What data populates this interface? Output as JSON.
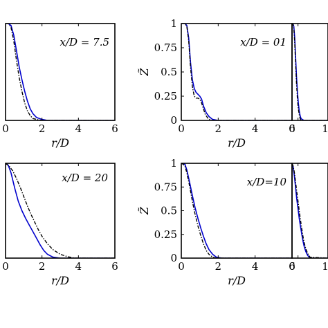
{
  "chart_data": [
    {
      "type": "line",
      "xlabel": "r/D",
      "ylabel": "",
      "annotation": "x/D = 7.5",
      "xticks": [
        "0",
        "2",
        "4",
        "6"
      ],
      "yticks": [],
      "xlim": [
        0,
        6
      ],
      "ylim": [
        0,
        1
      ],
      "grid": false,
      "series": [
        {
          "style": "solid",
          "color": "#0000cc",
          "x": [
            0,
            0.15,
            0.3,
            0.45,
            0.6,
            0.75,
            0.9,
            1.05,
            1.2,
            1.35,
            1.5,
            1.7,
            2.0,
            2.3,
            6
          ],
          "y": [
            1,
            1,
            0.98,
            0.88,
            0.72,
            0.55,
            0.42,
            0.3,
            0.2,
            0.12,
            0.07,
            0.03,
            0.01,
            0,
            0
          ]
        },
        {
          "style": "dashdot",
          "color": "#000000",
          "x": [
            0,
            0.15,
            0.3,
            0.45,
            0.6,
            0.75,
            0.9,
            1.05,
            1.2,
            1.35,
            1.5,
            1.7,
            2.0,
            6
          ],
          "y": [
            1,
            1,
            0.96,
            0.82,
            0.62,
            0.44,
            0.3,
            0.18,
            0.1,
            0.05,
            0.02,
            0.01,
            0,
            0
          ]
        }
      ]
    },
    {
      "type": "line",
      "xlabel": "r/D",
      "ylabel": "Z̃",
      "annotation": "x/D = 01",
      "xticks": [
        "0",
        "2",
        "4",
        "6"
      ],
      "yticks": [
        "0",
        "0.25",
        "0.5",
        "0.75",
        "1"
      ],
      "xlim": [
        0,
        6
      ],
      "ylim": [
        0,
        1
      ],
      "grid": false,
      "series": [
        {
          "style": "solid",
          "color": "#0000cc",
          "x": [
            0,
            0.1,
            0.2,
            0.3,
            0.4,
            0.5,
            0.6,
            0.7,
            0.8,
            0.9,
            1.0,
            1.1,
            1.2,
            1.35,
            1.5,
            1.7,
            2.0,
            6
          ],
          "y": [
            1,
            1,
            1,
            0.98,
            0.85,
            0.6,
            0.42,
            0.33,
            0.29,
            0.27,
            0.25,
            0.22,
            0.15,
            0.08,
            0.04,
            0.01,
            0,
            0
          ]
        },
        {
          "style": "dashdot",
          "color": "#000000",
          "x": [
            0,
            0.1,
            0.2,
            0.3,
            0.4,
            0.5,
            0.6,
            0.7,
            0.8,
            0.9,
            1.0,
            1.1,
            1.2,
            1.3,
            1.45,
            1.6,
            6
          ],
          "y": [
            1,
            1,
            1,
            0.97,
            0.82,
            0.55,
            0.35,
            0.25,
            0.23,
            0.23,
            0.22,
            0.18,
            0.12,
            0.06,
            0.02,
            0,
            0
          ]
        }
      ]
    },
    {
      "type": "line",
      "xlabel": "",
      "ylabel": "",
      "annotation": "",
      "xticks": [
        "0",
        "1"
      ],
      "yticks": [],
      "xlim": [
        0,
        6
      ],
      "ylim": [
        0,
        1
      ],
      "grid": false,
      "series": [
        {
          "style": "solid",
          "color": "#0000cc",
          "x": [
            0,
            0.15,
            0.3,
            0.45,
            0.6,
            0.75,
            0.9,
            1.05,
            1.2,
            1.35,
            1.5,
            1.7,
            2.0,
            6
          ],
          "y": [
            1,
            1,
            0.97,
            0.85,
            0.65,
            0.45,
            0.3,
            0.18,
            0.1,
            0.05,
            0.02,
            0.01,
            0,
            0
          ]
        },
        {
          "style": "dashdot",
          "color": "#000000",
          "x": [
            0,
            0.15,
            0.3,
            0.45,
            0.6,
            0.75,
            0.9,
            1.05,
            1.2,
            1.35,
            1.5,
            6
          ],
          "y": [
            1,
            1,
            0.95,
            0.8,
            0.58,
            0.38,
            0.22,
            0.12,
            0.06,
            0.02,
            0,
            0
          ]
        }
      ]
    },
    {
      "type": "line",
      "xlabel": "r/D",
      "ylabel": "",
      "annotation": "x/D = 20",
      "xticks": [
        "0",
        "2",
        "4",
        "6"
      ],
      "yticks": [],
      "xlim": [
        0,
        6
      ],
      "ylim": [
        0,
        1
      ],
      "grid": false,
      "series": [
        {
          "style": "solid",
          "color": "#0000cc",
          "x": [
            0,
            0.15,
            0.3,
            0.5,
            0.7,
            0.9,
            1.1,
            1.3,
            1.5,
            1.7,
            1.9,
            2.1,
            2.3,
            2.6,
            3.0,
            6
          ],
          "y": [
            1,
            0.98,
            0.9,
            0.74,
            0.6,
            0.5,
            0.42,
            0.35,
            0.28,
            0.21,
            0.14,
            0.08,
            0.04,
            0.01,
            0,
            0
          ]
        },
        {
          "style": "dashdot",
          "color": "#000000",
          "x": [
            0,
            0.2,
            0.4,
            0.6,
            0.8,
            1.0,
            1.2,
            1.4,
            1.6,
            1.8,
            2.0,
            2.3,
            2.6,
            3.0,
            3.4,
            3.8,
            6
          ],
          "y": [
            1,
            0.97,
            0.92,
            0.84,
            0.75,
            0.65,
            0.55,
            0.46,
            0.38,
            0.3,
            0.23,
            0.15,
            0.09,
            0.04,
            0.015,
            0,
            0
          ]
        }
      ]
    },
    {
      "type": "line",
      "xlabel": "r/D",
      "ylabel": "Z̃",
      "annotation": "x/D=10",
      "xticks": [
        "0",
        "2",
        "4",
        "6"
      ],
      "yticks": [
        "0",
        "0.25",
        "0.5",
        "0.75",
        "1"
      ],
      "xlim": [
        0,
        6
      ],
      "ylim": [
        0,
        1
      ],
      "grid": false,
      "series": [
        {
          "style": "solid",
          "color": "#0000cc",
          "x": [
            0,
            0.1,
            0.2,
            0.3,
            0.45,
            0.6,
            0.75,
            0.9,
            1.05,
            1.2,
            1.35,
            1.5,
            1.7,
            1.9,
            2.2,
            6
          ],
          "y": [
            1,
            1,
            0.99,
            0.93,
            0.8,
            0.66,
            0.53,
            0.42,
            0.32,
            0.23,
            0.15,
            0.09,
            0.04,
            0.01,
            0,
            0
          ]
        },
        {
          "style": "dashdot",
          "color": "#000000",
          "x": [
            0,
            0.1,
            0.2,
            0.3,
            0.45,
            0.6,
            0.75,
            0.9,
            1.05,
            1.2,
            1.35,
            1.5,
            1.7,
            1.9,
            6
          ],
          "y": [
            1,
            0.99,
            0.97,
            0.9,
            0.76,
            0.6,
            0.46,
            0.34,
            0.24,
            0.15,
            0.08,
            0.04,
            0.01,
            0,
            0
          ]
        }
      ]
    },
    {
      "type": "line",
      "xlabel": "",
      "ylabel": "",
      "annotation": "",
      "xticks": [
        "0",
        "1"
      ],
      "yticks": [],
      "xlim": [
        0,
        6
      ],
      "ylim": [
        0,
        1
      ],
      "grid": false,
      "series": [
        {
          "style": "solid",
          "color": "#0000cc",
          "x": [
            0,
            0.2,
            0.4,
            0.6,
            0.8,
            1.0,
            1.2,
            1.4,
            1.6,
            1.8,
            2.0,
            2.3,
            2.6,
            3.0,
            6
          ],
          "y": [
            1,
            0.96,
            0.86,
            0.74,
            0.62,
            0.52,
            0.42,
            0.34,
            0.26,
            0.19,
            0.13,
            0.07,
            0.03,
            0,
            0
          ]
        },
        {
          "style": "dashdot",
          "color": "#000000",
          "x": [
            0,
            0.2,
            0.4,
            0.6,
            0.8,
            1.0,
            1.2,
            1.4,
            1.6,
            1.8,
            2.0,
            2.3,
            2.6,
            3.0,
            6
          ],
          "y": [
            1,
            0.97,
            0.9,
            0.8,
            0.7,
            0.6,
            0.5,
            0.41,
            0.32,
            0.24,
            0.17,
            0.1,
            0.05,
            0.01,
            0
          ]
        }
      ]
    }
  ]
}
